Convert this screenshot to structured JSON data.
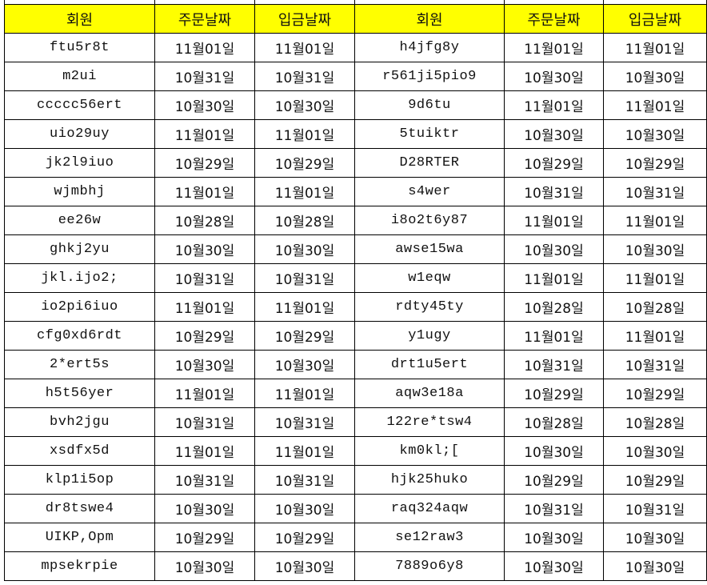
{
  "headers": [
    "회원",
    "주문날짜",
    "입금날짜",
    "회원",
    "주문날짜",
    "입금날짜"
  ],
  "colors": {
    "header_bg": "#ffff00",
    "grid": "#000000"
  },
  "rows": [
    [
      "ftu5r8t",
      "11월01일",
      "11월01일",
      "h4jfg8y",
      "11월01일",
      "11월01일"
    ],
    [
      "m2ui",
      "10월31일",
      "10월31일",
      "r561ji5pio9",
      "10월30일",
      "10월30일"
    ],
    [
      "ccccc56ert",
      "10월30일",
      "10월30일",
      "9d6tu",
      "11월01일",
      "11월01일"
    ],
    [
      "uio29uy",
      "11월01일",
      "11월01일",
      "5tuiktr",
      "10월30일",
      "10월30일"
    ],
    [
      "jk2l9iuo",
      "10월29일",
      "10월29일",
      "D28RTER",
      "10월29일",
      "10월29일"
    ],
    [
      "wjmbhj",
      "11월01일",
      "11월01일",
      "s4wer",
      "10월31일",
      "10월31일"
    ],
    [
      "ee26w",
      "10월28일",
      "10월28일",
      "i8o2t6y87",
      "11월01일",
      "11월01일"
    ],
    [
      "ghkj2yu",
      "10월30일",
      "10월30일",
      "awse15wa",
      "10월30일",
      "10월30일"
    ],
    [
      "jkl.ijo2;",
      "10월31일",
      "10월31일",
      "w1eqw",
      "11월01일",
      "11월01일"
    ],
    [
      "io2pi6iuo",
      "11월01일",
      "11월01일",
      "rdty45ty",
      "10월28일",
      "10월28일"
    ],
    [
      "cfg0xd6rdt",
      "10월29일",
      "10월29일",
      "y1ugy",
      "11월01일",
      "11월01일"
    ],
    [
      "2*ert5s",
      "10월30일",
      "10월30일",
      "drt1u5ert",
      "10월31일",
      "10월31일"
    ],
    [
      "h5t56yer",
      "11월01일",
      "11월01일",
      "aqw3e18a",
      "10월29일",
      "10월29일"
    ],
    [
      "bvh2jgu",
      "10월31일",
      "10월31일",
      "122re*tsw4",
      "10월28일",
      "10월28일"
    ],
    [
      "xsdfx5d",
      "11월01일",
      "11월01일",
      "km0kl;[",
      "10월30일",
      "10월30일"
    ],
    [
      "klp1i5op",
      "10월31일",
      "10월31일",
      "hjk25huko",
      "10월29일",
      "10월29일"
    ],
    [
      "dr8tswe4",
      "10월30일",
      "10월30일",
      "raq324aqw",
      "10월31일",
      "10월31일"
    ],
    [
      "UIKP,Opm",
      "10월29일",
      "10월29일",
      "se12raw3",
      "10월30일",
      "10월30일"
    ],
    [
      "mpsekrpie",
      "10월30일",
      "10월30일",
      "7889o6y8",
      "10월30일",
      "10월30일"
    ]
  ]
}
